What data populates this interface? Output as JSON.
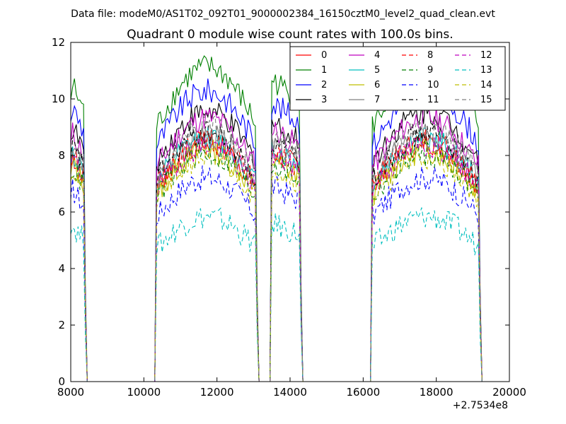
{
  "chart_data": {
    "type": "line",
    "suptitle": "Data file: modeM0/AS1T02_092T01_9000002384_16150cztM0_level2_quad_clean.evt",
    "title": "Quadrant 0 module wise count rates with 100.0s bins.",
    "xlabel": "",
    "ylabel": "",
    "offset_text": "+2.7534e8",
    "xlim": [
      8000,
      20000
    ],
    "ylim": [
      0,
      12
    ],
    "xticks": [
      8000,
      10000,
      12000,
      14000,
      16000,
      18000,
      20000
    ],
    "yticks": [
      0,
      2,
      4,
      6,
      8,
      10,
      12
    ],
    "grid": false,
    "legend": {
      "placement": "top-right",
      "columns": 4
    },
    "segments": [
      {
        "start": 8050,
        "end": 8400,
        "shape": "spike"
      },
      {
        "start": 10350,
        "end": 13100,
        "shape": "dome"
      },
      {
        "start": 13500,
        "end": 14300,
        "shape": "short"
      },
      {
        "start": 16250,
        "end": 19200,
        "shape": "dome"
      }
    ],
    "series": [
      {
        "name": "0",
        "color": "#ff0000",
        "dash": "solid",
        "level": 8.0
      },
      {
        "name": "1",
        "color": "#008000",
        "dash": "solid",
        "level": 10.5
      },
      {
        "name": "2",
        "color": "#0000ff",
        "dash": "solid",
        "level": 9.7
      },
      {
        "name": "3",
        "color": "#000000",
        "dash": "solid",
        "level": 9.0
      },
      {
        "name": "4",
        "color": "#bf00bf",
        "dash": "solid",
        "level": 8.8
      },
      {
        "name": "5",
        "color": "#00bfbf",
        "dash": "solid",
        "level": 8.1
      },
      {
        "name": "6",
        "color": "#bfbf00",
        "dash": "solid",
        "level": 7.7
      },
      {
        "name": "7",
        "color": "#808080",
        "dash": "solid",
        "level": 8.2
      },
      {
        "name": "8",
        "color": "#ff0000",
        "dash": "dashed",
        "level": 8.0
      },
      {
        "name": "9",
        "color": "#008000",
        "dash": "dashed",
        "level": 7.6
      },
      {
        "name": "10",
        "color": "#0000ff",
        "dash": "dashed",
        "level": 6.8
      },
      {
        "name": "11",
        "color": "#000000",
        "dash": "dashed",
        "level": 8.3
      },
      {
        "name": "12",
        "color": "#bf00bf",
        "dash": "dashed",
        "level": 7.9
      },
      {
        "name": "13",
        "color": "#00bfbf",
        "dash": "dashed",
        "level": 5.5
      },
      {
        "name": "14",
        "color": "#bfbf00",
        "dash": "dashed",
        "level": 7.5
      },
      {
        "name": "15",
        "color": "#808080",
        "dash": "dashed",
        "level": 8.5
      }
    ]
  }
}
